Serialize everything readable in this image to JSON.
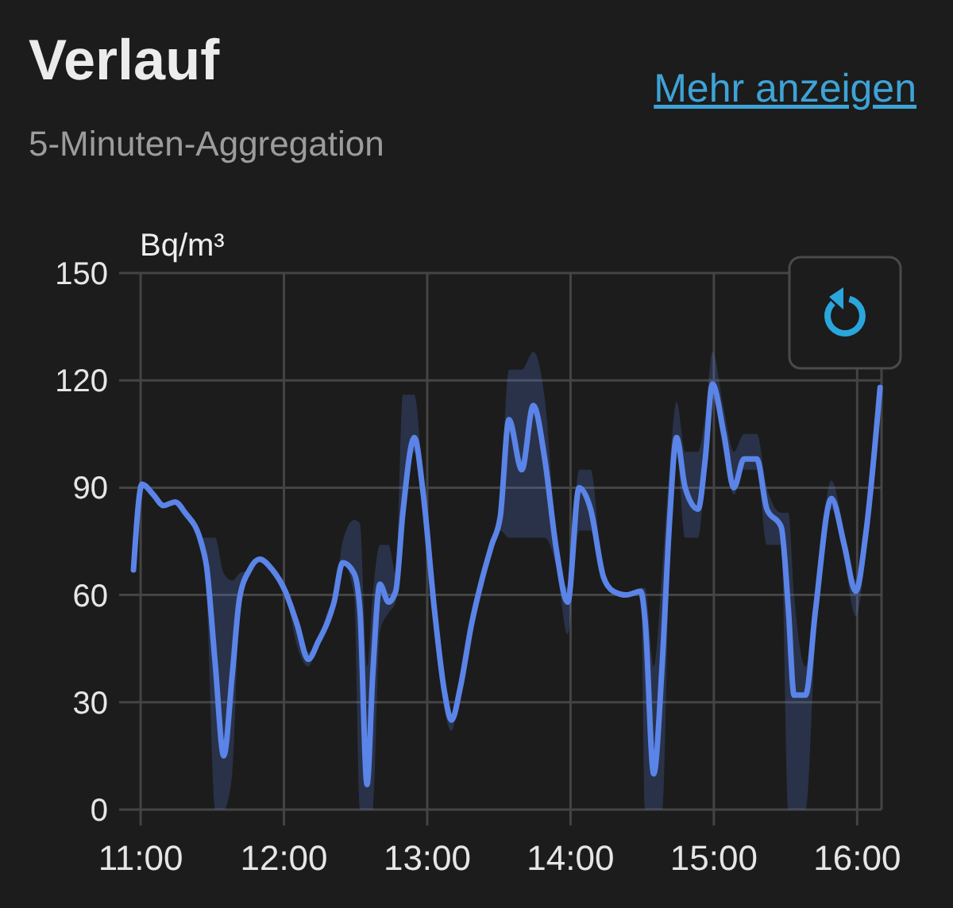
{
  "chart_data": {
    "type": "line",
    "title": "Verlauf",
    "subtitle": "5-Minuten-Aggregation",
    "ylabel": "Bq/m³",
    "annotations": [
      "Mehr anzeigen"
    ],
    "x": [
      10.95,
      11.01,
      11.09,
      11.16,
      11.24,
      11.31,
      11.42,
      11.46,
      11.52,
      11.58,
      11.64,
      11.69,
      11.76,
      11.83,
      11.92,
      12.01,
      12.09,
      12.17,
      12.24,
      12.31,
      12.35,
      12.41,
      12.49,
      12.53,
      12.58,
      12.62,
      12.67,
      12.73,
      12.78,
      12.83,
      12.91,
      12.97,
      13.05,
      13.12,
      13.17,
      13.23,
      13.31,
      13.38,
      13.45,
      13.51,
      13.57,
      13.66,
      13.74,
      13.82,
      13.9,
      13.98,
      14.06,
      14.14,
      14.23,
      14.3,
      14.39,
      14.49,
      14.52,
      14.58,
      14.64,
      14.69,
      14.74,
      14.8,
      14.89,
      14.94,
      14.99,
      15.07,
      15.14,
      15.21,
      15.3,
      15.37,
      15.47,
      15.52,
      15.56,
      15.64,
      15.71,
      15.82,
      15.91,
      15.99,
      16.06,
      16.16
    ],
    "series": [
      {
        "color": "#5b84e8",
        "values": [
          67,
          91,
          88,
          85,
          86,
          83,
          75,
          68,
          41,
          15,
          38,
          59,
          67,
          70,
          67,
          61,
          52,
          42,
          47,
          53,
          58,
          69,
          66,
          56,
          7,
          38,
          63,
          58,
          61,
          83,
          104,
          89,
          56,
          33,
          25,
          34,
          52,
          64,
          74,
          82,
          109,
          95,
          113,
          98,
          73,
          58,
          90,
          84,
          65,
          61,
          60,
          61,
          53,
          10,
          41,
          80,
          104,
          90,
          84,
          98,
          119,
          105,
          90,
          98,
          98,
          84,
          79,
          56,
          32,
          32,
          56,
          87,
          74,
          61,
          77,
          118
        ],
        "lower": [
          67,
          91,
          88,
          85,
          86,
          83,
          75,
          60,
          0,
          0,
          10,
          55,
          67,
          70,
          67,
          61,
          46,
          40,
          47,
          53,
          58,
          69,
          60,
          0,
          0,
          0,
          50,
          55,
          58,
          80,
          100,
          86,
          56,
          28,
          22,
          34,
          52,
          64,
          74,
          78,
          76,
          76,
          76,
          76,
          68,
          49,
          78,
          78,
          65,
          61,
          60,
          61,
          0,
          0,
          0,
          70,
          100,
          76,
          76,
          94,
          115,
          100,
          88,
          95,
          95,
          74,
          74,
          0,
          0,
          0,
          50,
          84,
          70,
          54,
          72,
          118
        ],
        "upper": [
          67,
          91,
          88,
          85,
          86,
          83,
          76,
          76,
          76,
          66,
          64,
          66,
          67,
          70,
          67,
          61,
          52,
          44,
          47,
          56,
          58,
          75,
          81,
          80,
          40,
          60,
          74,
          74,
          66,
          116,
          116,
          92,
          56,
          33,
          25,
          34,
          52,
          64,
          74,
          86,
          123,
          123,
          128,
          115,
          76,
          62,
          95,
          95,
          65,
          61,
          60,
          62,
          62,
          40,
          67,
          95,
          114,
          100,
          100,
          110,
          128,
          112,
          100,
          105,
          105,
          90,
          83,
          83,
          60,
          40,
          60,
          92,
          78,
          64,
          80,
          118
        ]
      }
    ],
    "xlim": [
      10.85,
      16.17
    ],
    "xticks": [
      {
        "value": 11,
        "label": "11:00"
      },
      {
        "value": 12,
        "label": "12:00"
      },
      {
        "value": 13,
        "label": "13:00"
      },
      {
        "value": 14,
        "label": "14:00"
      },
      {
        "value": 15,
        "label": "15:00"
      },
      {
        "value": 16,
        "label": "16:00"
      }
    ],
    "ylim": [
      0,
      150
    ],
    "yticks": [
      0,
      30,
      60,
      90,
      120,
      150
    ],
    "grid": true
  }
}
